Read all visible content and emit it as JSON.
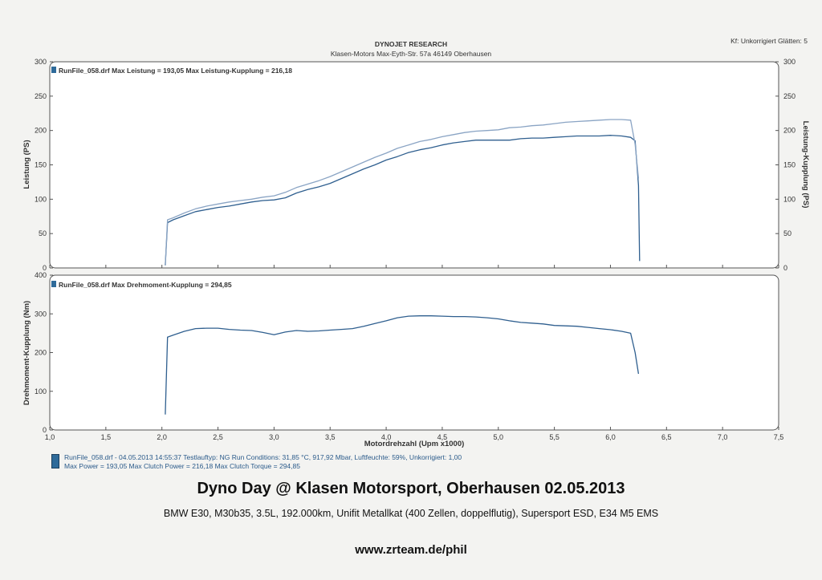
{
  "header": {
    "company": "DYNOJET RESEARCH",
    "address": "Klasen-Motors   Max-Eyth-Str. 57a   46149 Oberhausen",
    "settings": "Kf: Unkorrigiert  Glätten: 5"
  },
  "chart_data": [
    {
      "type": "line",
      "ylabel": "Leistung (PS)",
      "y2label": "Leistung-Kupplung (PS)",
      "ylim": [
        0,
        300
      ],
      "yticks": [
        0,
        50,
        100,
        150,
        200,
        250,
        300
      ],
      "xlim": [
        1.0,
        7.5
      ],
      "annotation": "RunFile_058.drf Max Leistung = 193,05     Max Leistung-Kupplung = 216,18",
      "grid": false,
      "series": [
        {
          "color": "#2f5f8f",
          "x": [
            2.03,
            2.05,
            2.1,
            2.2,
            2.3,
            2.4,
            2.5,
            2.6,
            2.7,
            2.8,
            2.9,
            3.0,
            3.1,
            3.2,
            3.3,
            3.4,
            3.5,
            3.6,
            3.7,
            3.8,
            3.9,
            4.0,
            4.1,
            4.2,
            4.3,
            4.4,
            4.5,
            4.6,
            4.7,
            4.8,
            4.9,
            5.0,
            5.1,
            5.2,
            5.3,
            5.4,
            5.5,
            5.6,
            5.7,
            5.8,
            5.9,
            6.0,
            6.1,
            6.18,
            6.22,
            6.25,
            6.26
          ],
          "y": [
            4,
            66,
            70,
            76,
            82,
            85,
            88,
            90,
            93,
            96,
            98,
            99,
            102,
            109,
            114,
            118,
            123,
            130,
            137,
            144,
            150,
            157,
            162,
            168,
            172,
            175,
            179,
            182,
            184,
            186,
            186,
            186,
            186,
            188,
            189,
            189,
            190,
            191,
            192,
            192,
            192,
            193,
            192,
            190,
            185,
            120,
            10
          ]
        },
        {
          "color": "#8aa4c4",
          "x": [
            2.03,
            2.05,
            2.1,
            2.2,
            2.3,
            2.4,
            2.5,
            2.6,
            2.7,
            2.8,
            2.9,
            3.0,
            3.1,
            3.2,
            3.3,
            3.4,
            3.5,
            3.6,
            3.7,
            3.8,
            3.9,
            4.0,
            4.1,
            4.2,
            4.3,
            4.4,
            4.5,
            4.6,
            4.7,
            4.8,
            4.9,
            5.0,
            5.1,
            5.2,
            5.3,
            5.4,
            5.5,
            5.6,
            5.7,
            5.8,
            5.9,
            6.0,
            6.1,
            6.18,
            6.22,
            6.25
          ],
          "y": [
            5,
            70,
            73,
            80,
            86,
            90,
            93,
            96,
            98,
            100,
            103,
            105,
            110,
            117,
            122,
            127,
            133,
            140,
            147,
            154,
            161,
            167,
            174,
            179,
            184,
            187,
            191,
            194,
            197,
            199,
            200,
            201,
            204,
            205,
            207,
            208,
            210,
            212,
            213,
            214,
            215,
            216,
            216,
            215,
            180,
            130
          ]
        }
      ]
    },
    {
      "type": "line",
      "ylabel": "Drehmoment-Kupplung (Nm)",
      "xlabel": "Motordrehzahl (Upm x1000)",
      "ylim": [
        0,
        400
      ],
      "yticks": [
        0,
        100,
        200,
        300,
        400
      ],
      "xlim": [
        1.0,
        7.5
      ],
      "xticks": [
        "1,0",
        "1,5",
        "2,0",
        "2,5",
        "3,0",
        "3,5",
        "4,0",
        "4,5",
        "5,0",
        "5,5",
        "6,0",
        "6,5",
        "7,0",
        "7,5"
      ],
      "annotation": "RunFile_058.drf Max Drehmoment-Kupplung = 294,85",
      "grid": false,
      "series": [
        {
          "color": "#2f5f8f",
          "x": [
            2.03,
            2.05,
            2.1,
            2.2,
            2.3,
            2.4,
            2.5,
            2.6,
            2.7,
            2.8,
            2.9,
            3.0,
            3.1,
            3.2,
            3.3,
            3.4,
            3.5,
            3.6,
            3.7,
            3.8,
            3.9,
            4.0,
            4.1,
            4.2,
            4.3,
            4.4,
            4.5,
            4.6,
            4.7,
            4.8,
            4.9,
            5.0,
            5.1,
            5.2,
            5.3,
            5.4,
            5.5,
            5.6,
            5.7,
            5.8,
            5.9,
            6.0,
            6.1,
            6.18,
            6.22,
            6.25
          ],
          "y": [
            40,
            240,
            245,
            255,
            262,
            263,
            263,
            260,
            258,
            257,
            252,
            246,
            253,
            257,
            255,
            256,
            258,
            260,
            262,
            268,
            275,
            282,
            290,
            294,
            295,
            295,
            294,
            293,
            293,
            292,
            290,
            287,
            282,
            278,
            276,
            274,
            270,
            269,
            268,
            265,
            262,
            259,
            255,
            250,
            200,
            145
          ]
        }
      ]
    }
  ],
  "run_info": {
    "line1": "RunFile_058.drf - 04.05.2013 14:55:37   Testlauftyp: NG   Run Conditions: 31,85 °C, 917,92 Mbar,   Luftfeuchte: 59%, Unkorrigiert: 1,00",
    "line2": "Max Power = 193,05   Max Clutch Power = 216,18   Max Clutch Torque = 294,85"
  },
  "caption": {
    "title": "Dyno Day @ Klasen Motorsport, Oberhausen 02.05.2013",
    "subtitle": "BMW E30, M30b35, 3.5L, 192.000km, Unifit Metallkat (400 Zellen, doppelflutig), Supersport ESD, E34 M5 EMS",
    "url": "www.zrteam.de/phil"
  }
}
